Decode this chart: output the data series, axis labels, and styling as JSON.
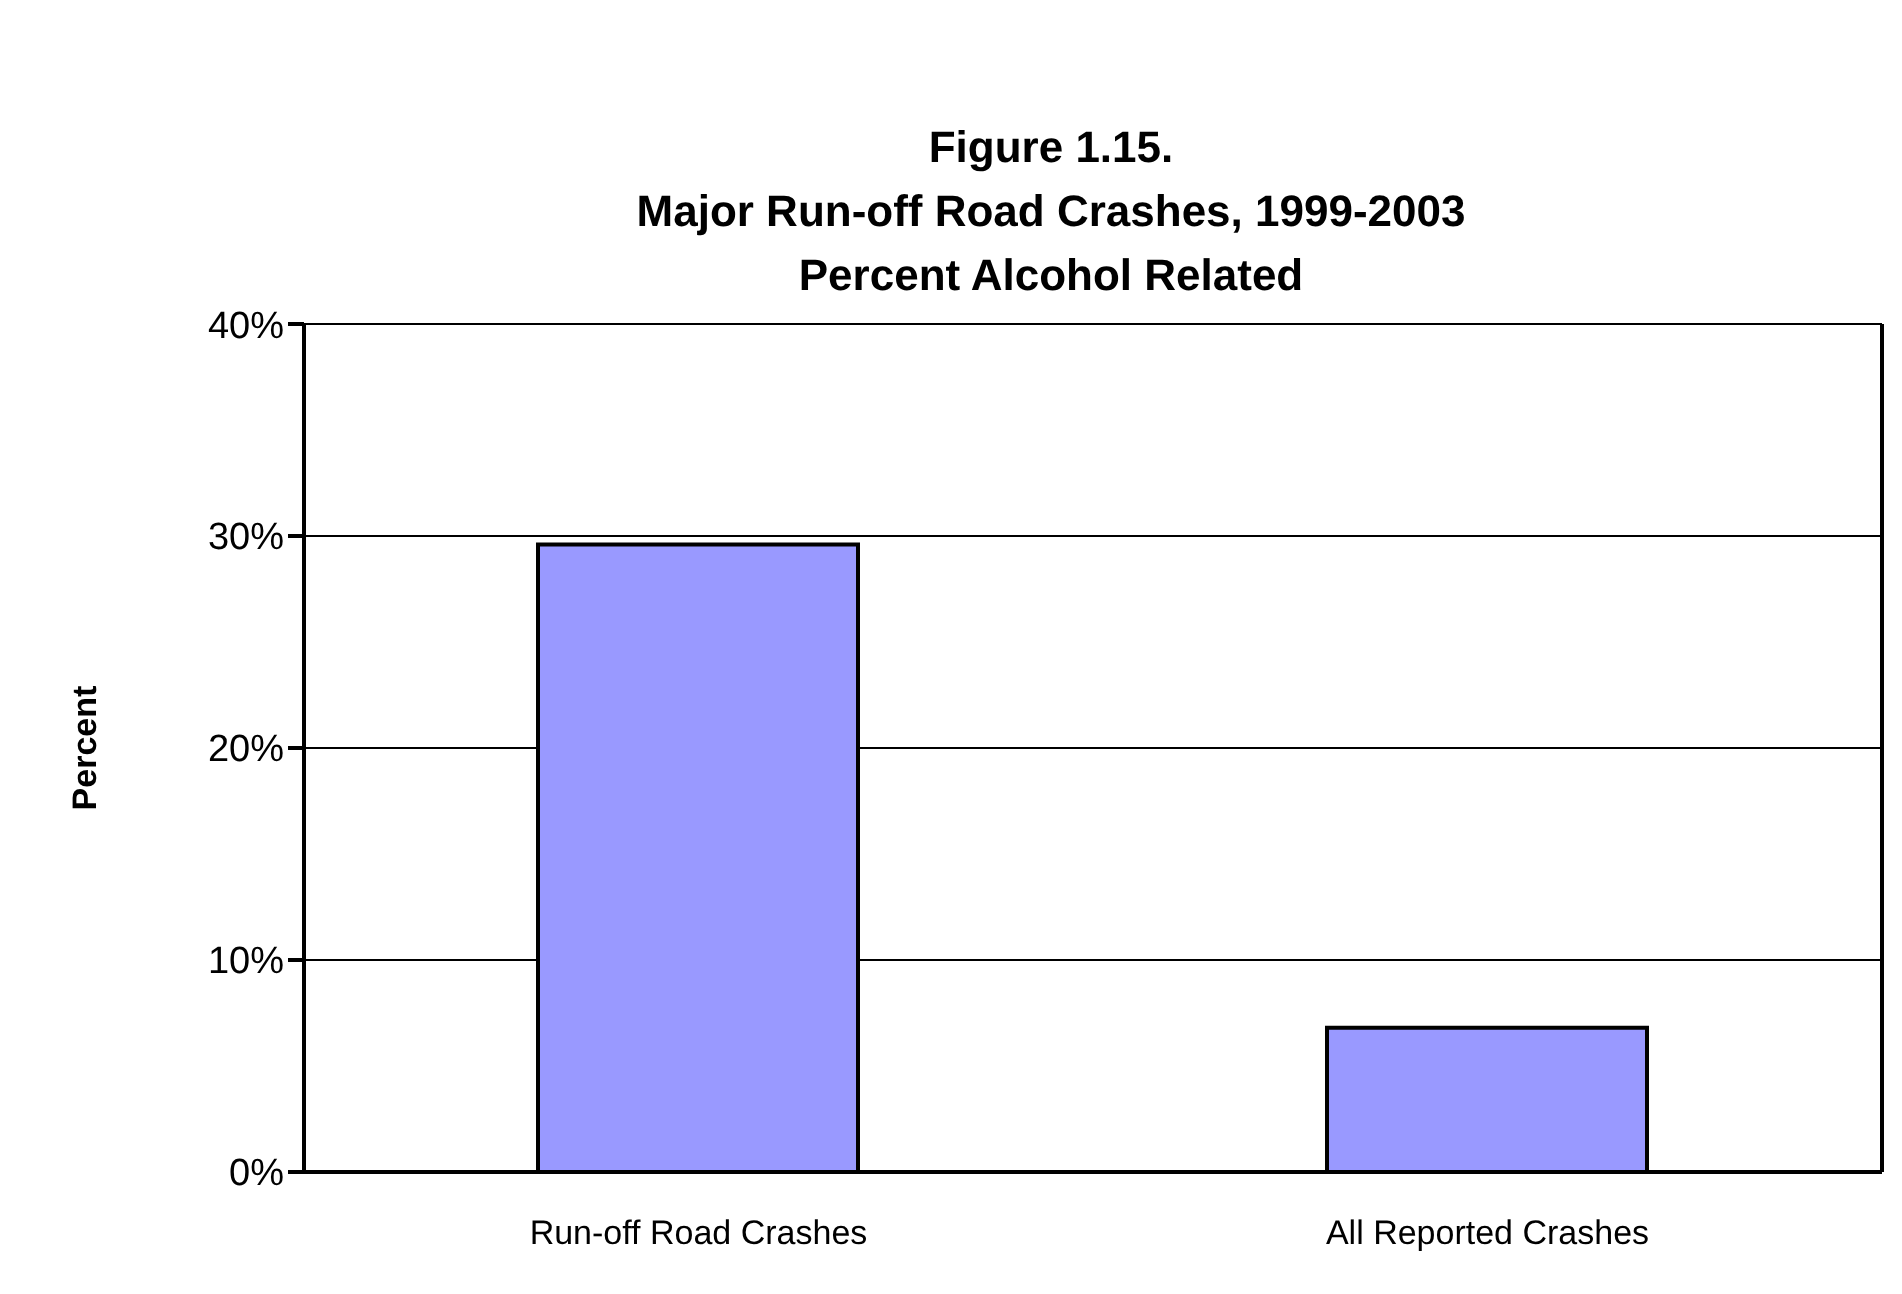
{
  "chart_data": {
    "type": "bar",
    "title": "Figure 1.15.\nMajor Run-off Road Crashes, 1999-2003\nPercent Alcohol Related",
    "ylabel": "Percent",
    "categories": [
      "Run-off Road Crashes",
      "All Reported Crashes"
    ],
    "values": [
      29.6,
      6.8
    ],
    "color": "#9999ff",
    "ylim": [
      0,
      40
    ],
    "yticks": [
      {
        "value": 0,
        "label": "0%"
      },
      {
        "value": 10,
        "label": "10%"
      },
      {
        "value": 20,
        "label": "20%"
      },
      {
        "value": 30,
        "label": "30%"
      },
      {
        "value": 40,
        "label": "40%"
      }
    ],
    "grid": "y"
  }
}
